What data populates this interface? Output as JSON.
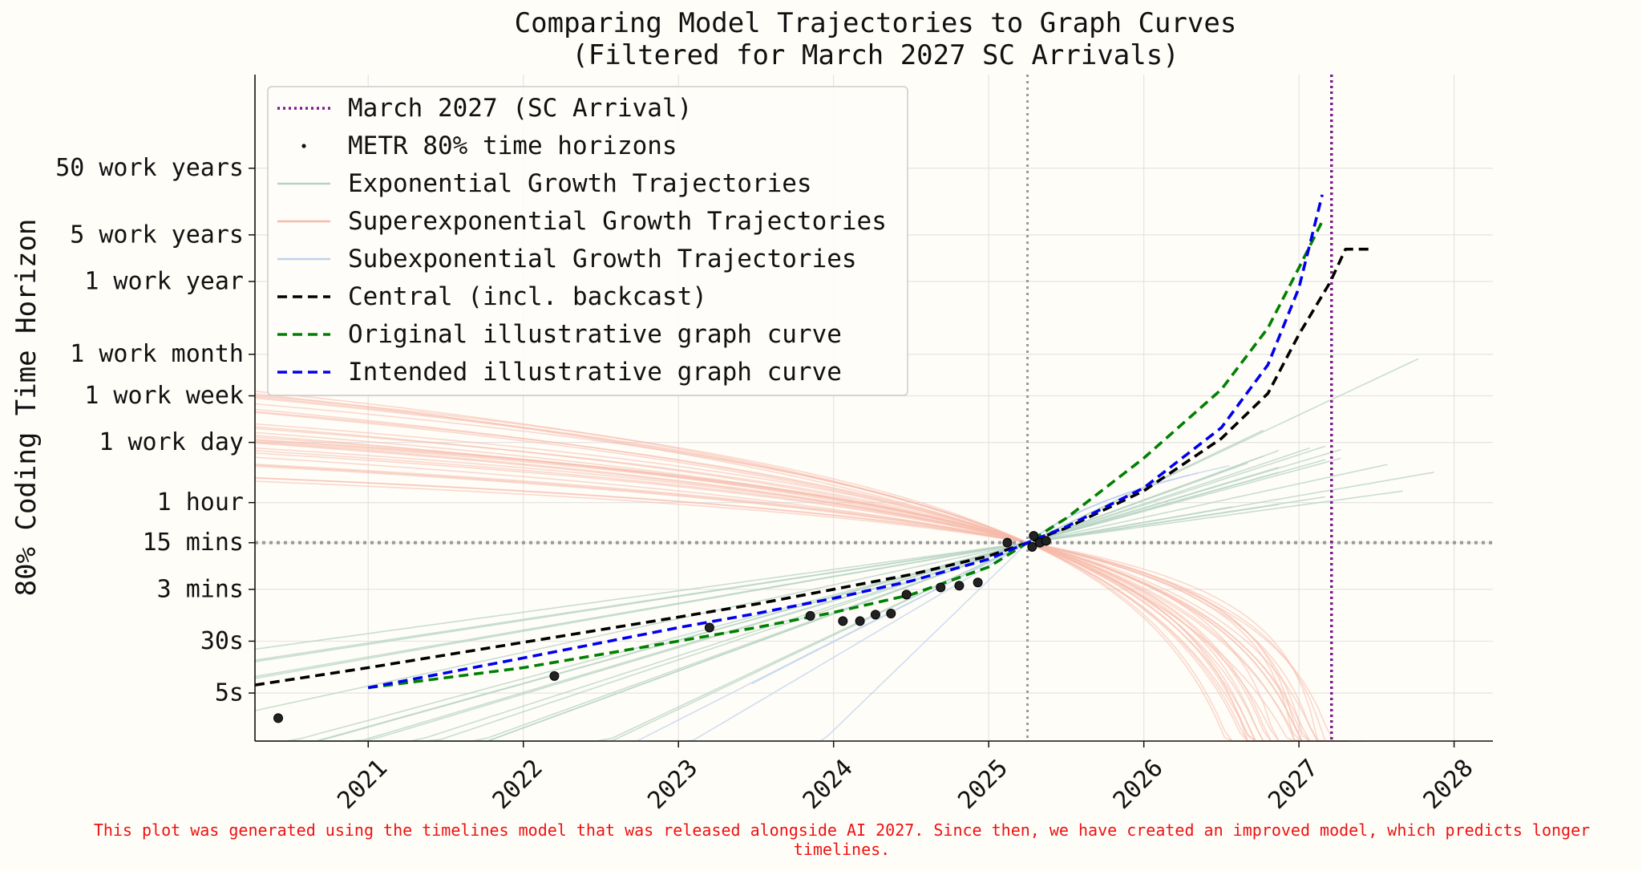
{
  "chart_data": {
    "type": "line",
    "title": [
      "Comparing Model Trajectories to Graph Curves",
      "(Filtered for March 2027 SC Arrivals)"
    ],
    "xlabel": "",
    "ylabel": "80% Coding Time Horizon",
    "y_scale": "log",
    "y_unit": "minutes",
    "xlim": [
      2020.27,
      2028.25
    ],
    "ylim_log10_minutes": [
      -1.8,
      8.2
    ],
    "x_ticks": [
      {
        "value": 2021,
        "label": "2021"
      },
      {
        "value": 2022,
        "label": "2022"
      },
      {
        "value": 2023,
        "label": "2023"
      },
      {
        "value": 2024,
        "label": "2024"
      },
      {
        "value": 2025,
        "label": "2025"
      },
      {
        "value": 2026,
        "label": "2026"
      },
      {
        "value": 2027,
        "label": "2027"
      },
      {
        "value": 2028,
        "label": "2028"
      }
    ],
    "y_ticks": [
      {
        "minutes": 0.0833,
        "label": "5s"
      },
      {
        "minutes": 0.5,
        "label": "30s"
      },
      {
        "minutes": 3,
        "label": "3 mins"
      },
      {
        "minutes": 15,
        "label": "15 mins"
      },
      {
        "minutes": 60,
        "label": "1 hour"
      },
      {
        "minutes": 480,
        "label": "1 work day"
      },
      {
        "minutes": 2400,
        "label": "1 work week"
      },
      {
        "minutes": 10080,
        "label": "1 work month"
      },
      {
        "minutes": 124800,
        "label": "1 work year"
      },
      {
        "minutes": 624000,
        "label": "5 work years"
      },
      {
        "minutes": 6240000,
        "label": "50 work years"
      }
    ],
    "grid": true,
    "reference_lines": {
      "sc_arrival_x": 2027.21,
      "current_date_x": 2025.25,
      "fifteen_min_y": 15
    },
    "legend": {
      "placement": "top-left",
      "entries": [
        {
          "label": "March 2027 (SC Arrival)",
          "style": "dotted",
          "color": "#7b1c8c"
        },
        {
          "label": "METR 80% time horizons",
          "style": "point",
          "color": "#111111"
        },
        {
          "label": "Exponential Growth Trajectories",
          "style": "line",
          "color": "#b5d3c3"
        },
        {
          "label": "Superexponential Growth Trajectories",
          "style": "line",
          "color": "#f5b9aa"
        },
        {
          "label": "Subexponential Growth Trajectories",
          "style": "line",
          "color": "#bcd0ee"
        },
        {
          "label": "Central (incl. backcast)",
          "style": "dashed",
          "color": "#000000"
        },
        {
          "label": "Original illustrative graph curve",
          "style": "dashed",
          "color": "#008000"
        },
        {
          "label": "Intended illustrative graph curve",
          "style": "dashed",
          "color": "#0000ee"
        }
      ]
    },
    "metr_points": [
      {
        "x": 2020.42,
        "y_minutes": 0.035
      },
      {
        "x": 2022.2,
        "y_minutes": 0.15
      },
      {
        "x": 2023.2,
        "y_minutes": 0.8
      },
      {
        "x": 2023.85,
        "y_minutes": 1.2
      },
      {
        "x": 2024.06,
        "y_minutes": 1.0
      },
      {
        "x": 2024.17,
        "y_minutes": 1.0
      },
      {
        "x": 2024.27,
        "y_minutes": 1.25
      },
      {
        "x": 2024.37,
        "y_minutes": 1.3
      },
      {
        "x": 2024.47,
        "y_minutes": 2.5
      },
      {
        "x": 2024.69,
        "y_minutes": 3.2
      },
      {
        "x": 2024.81,
        "y_minutes": 3.4
      },
      {
        "x": 2024.93,
        "y_minutes": 3.8
      },
      {
        "x": 2025.12,
        "y_minutes": 15
      },
      {
        "x": 2025.28,
        "y_minutes": 13
      },
      {
        "x": 2025.29,
        "y_minutes": 19
      },
      {
        "x": 2025.33,
        "y_minutes": 15
      },
      {
        "x": 2025.37,
        "y_minutes": 16
      }
    ],
    "series": [
      {
        "name": "Central (incl. backcast)",
        "color": "#000000",
        "style": "dashed",
        "x": [
          2020.27,
          2021.0,
          2022.0,
          2023.0,
          2023.5,
          2024.0,
          2024.5,
          2025.0,
          2025.25,
          2025.5,
          2026.0,
          2026.5,
          2026.8,
          2027.0,
          2027.2,
          2027.3,
          2027.45
        ],
        "y_minutes": [
          0.11,
          0.2,
          0.48,
          1.15,
          1.8,
          3.0,
          5.0,
          9.5,
          15,
          25,
          90,
          550,
          2600,
          20000,
          120000,
          380000,
          380000
        ]
      },
      {
        "name": "Original illustrative graph curve",
        "color": "#008000",
        "style": "dashed",
        "x": [
          2021.0,
          2022.0,
          2023.0,
          2023.5,
          2024.0,
          2024.5,
          2025.0,
          2025.25,
          2025.5,
          2026.0,
          2026.5,
          2026.8,
          2027.0,
          2027.15
        ],
        "y_minutes": [
          0.1,
          0.2,
          0.5,
          0.8,
          1.35,
          2.5,
          6.5,
          15,
          35,
          280,
          3000,
          25000,
          200000,
          1000000
        ]
      },
      {
        "name": "Intended illustrative graph curve",
        "color": "#0000ee",
        "style": "dashed",
        "x": [
          2021.0,
          2022.0,
          2023.0,
          2023.5,
          2024.0,
          2024.5,
          2025.0,
          2025.25,
          2025.5,
          2026.0,
          2026.5,
          2026.8,
          2027.0,
          2027.15
        ],
        "y_minutes": [
          0.1,
          0.28,
          0.8,
          1.3,
          2.2,
          4.0,
          8.5,
          15,
          26,
          100,
          800,
          7000,
          100000,
          2500000
        ]
      }
    ],
    "trajectory_bands": [
      {
        "name": "Exponential Growth Trajectories",
        "count": 18,
        "color": "#b5d3c3"
      },
      {
        "name": "Superexponential Growth Trajectories",
        "count": 30,
        "color": "#f5b9aa"
      },
      {
        "name": "Subexponential Growth Trajectories",
        "count": 4,
        "color": "#bcd0ee"
      }
    ]
  },
  "footnote": "This plot was generated using the timelines model that was released alongside AI 2027. Since then, we have created an improved model, which predicts longer timelines."
}
